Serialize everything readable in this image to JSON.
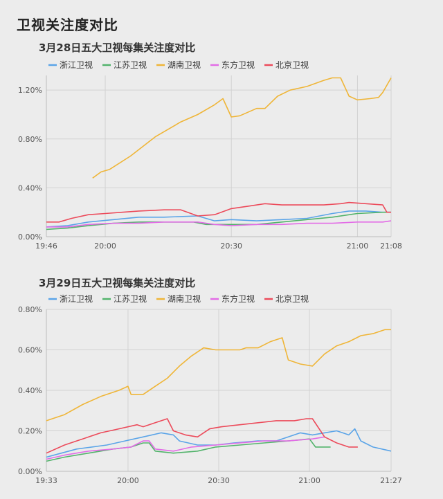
{
  "page": {
    "title": "卫视关注度对比"
  },
  "colors": {
    "浙江卫视": "#5aa4e8",
    "江苏卫视": "#52b36b",
    "湖南卫视": "#efb537",
    "东方卫视": "#e26be6",
    "北京卫视": "#ec4a5a"
  },
  "chart_data": [
    {
      "type": "line",
      "title": "3月28日五大卫视每集关注度对比",
      "legend_position": "top",
      "x_tick_labels": [
        "19:46",
        "20:00",
        "20:30",
        "21:00",
        "21:08"
      ],
      "x_tick_minutes": [
        0,
        14,
        44,
        74,
        82
      ],
      "xlim": [
        0,
        82
      ],
      "ylim": [
        0,
        1.32
      ],
      "y_ticks": [
        0,
        0.4,
        0.8,
        1.2
      ],
      "y_tick_labels": [
        "0.00%",
        "0.40%",
        "0.80%",
        "1.20%"
      ],
      "grid": true,
      "series": [
        {
          "name": "浙江卫视",
          "points": [
            [
              0,
              0.08
            ],
            [
              5,
              0.09
            ],
            [
              10,
              0.12
            ],
            [
              16,
              0.14
            ],
            [
              22,
              0.16
            ],
            [
              28,
              0.16
            ],
            [
              36,
              0.17
            ],
            [
              40,
              0.13
            ],
            [
              44,
              0.14
            ],
            [
              50,
              0.13
            ],
            [
              56,
              0.14
            ],
            [
              62,
              0.15
            ],
            [
              68,
              0.19
            ],
            [
              72,
              0.21
            ],
            [
              76,
              0.21
            ],
            [
              80,
              0.2
            ],
            [
              82,
              0.2
            ]
          ]
        },
        {
          "name": "江苏卫视",
          "points": [
            [
              0,
              0.06
            ],
            [
              5,
              0.07
            ],
            [
              10,
              0.09
            ],
            [
              16,
              0.11
            ],
            [
              22,
              0.12
            ],
            [
              28,
              0.12
            ],
            [
              35,
              0.12
            ],
            [
              38,
              0.1
            ],
            [
              44,
              0.1
            ],
            [
              50,
              0.1
            ],
            [
              56,
              0.12
            ],
            [
              62,
              0.14
            ],
            [
              68,
              0.16
            ],
            [
              74,
              0.19
            ],
            [
              80,
              0.2
            ],
            [
              82,
              0.2
            ]
          ]
        },
        {
          "name": "湖南卫视",
          "points": [
            [
              11,
              0.48
            ],
            [
              13,
              0.53
            ],
            [
              15,
              0.55
            ],
            [
              20,
              0.66
            ],
            [
              26,
              0.82
            ],
            [
              32,
              0.94
            ],
            [
              36,
              1.0
            ],
            [
              40,
              1.08
            ],
            [
              42,
              1.13
            ],
            [
              44,
              0.98
            ],
            [
              46,
              0.99
            ],
            [
              50,
              1.05
            ],
            [
              52,
              1.05
            ],
            [
              55,
              1.15
            ],
            [
              58,
              1.2
            ],
            [
              62,
              1.23
            ],
            [
              66,
              1.28
            ],
            [
              68,
              1.3
            ],
            [
              70,
              1.3
            ],
            [
              72,
              1.15
            ],
            [
              74,
              1.12
            ],
            [
              77,
              1.13
            ],
            [
              79,
              1.14
            ],
            [
              80,
              1.18
            ],
            [
              82,
              1.3
            ]
          ]
        },
        {
          "name": "东方卫视",
          "points": [
            [
              0,
              0.08
            ],
            [
              5,
              0.08
            ],
            [
              10,
              0.1
            ],
            [
              16,
              0.11
            ],
            [
              22,
              0.11
            ],
            [
              28,
              0.12
            ],
            [
              36,
              0.12
            ],
            [
              40,
              0.1
            ],
            [
              44,
              0.09
            ],
            [
              50,
              0.1
            ],
            [
              56,
              0.1
            ],
            [
              62,
              0.11
            ],
            [
              68,
              0.11
            ],
            [
              74,
              0.12
            ],
            [
              80,
              0.12
            ],
            [
              82,
              0.13
            ]
          ]
        },
        {
          "name": "北京卫视",
          "points": [
            [
              0,
              0.12
            ],
            [
              3,
              0.12
            ],
            [
              6,
              0.15
            ],
            [
              10,
              0.18
            ],
            [
              14,
              0.19
            ],
            [
              18,
              0.2
            ],
            [
              22,
              0.21
            ],
            [
              28,
              0.22
            ],
            [
              32,
              0.22
            ],
            [
              36,
              0.17
            ],
            [
              40,
              0.18
            ],
            [
              44,
              0.23
            ],
            [
              48,
              0.25
            ],
            [
              52,
              0.27
            ],
            [
              56,
              0.26
            ],
            [
              62,
              0.26
            ],
            [
              66,
              0.26
            ],
            [
              70,
              0.27
            ],
            [
              72,
              0.28
            ],
            [
              76,
              0.27
            ],
            [
              80,
              0.26
            ],
            [
              81,
              0.2
            ],
            [
              82,
              0.2
            ]
          ]
        }
      ]
    },
    {
      "type": "line",
      "title": "3月29日五大卫视每集关注度对比",
      "legend_position": "top",
      "x_tick_labels": [
        "19:33",
        "20:00",
        "20:30",
        "21:00",
        "21:27"
      ],
      "x_tick_minutes": [
        0,
        27,
        57,
        87,
        114
      ],
      "xlim": [
        0,
        114
      ],
      "ylim": [
        0,
        0.8
      ],
      "y_ticks": [
        0,
        0.2,
        0.4,
        0.6,
        0.8
      ],
      "y_tick_labels": [
        "0.00%",
        "0.20%",
        "0.40%",
        "0.60%",
        "0.80%"
      ],
      "grid": true,
      "series": [
        {
          "name": "浙江卫视",
          "points": [
            [
              0,
              0.07
            ],
            [
              5,
              0.09
            ],
            [
              10,
              0.11
            ],
            [
              20,
              0.13
            ],
            [
              26,
              0.15
            ],
            [
              32,
              0.17
            ],
            [
              38,
              0.19
            ],
            [
              42,
              0.18
            ],
            [
              44,
              0.15
            ],
            [
              50,
              0.13
            ],
            [
              56,
              0.13
            ],
            [
              62,
              0.14
            ],
            [
              70,
              0.15
            ],
            [
              76,
              0.15
            ],
            [
              80,
              0.17
            ],
            [
              84,
              0.19
            ],
            [
              88,
              0.18
            ],
            [
              92,
              0.19
            ],
            [
              96,
              0.2
            ],
            [
              98,
              0.19
            ],
            [
              100,
              0.18
            ],
            [
              102,
              0.21
            ],
            [
              104,
              0.15
            ],
            [
              108,
              0.12
            ],
            [
              114,
              0.1
            ]
          ]
        },
        {
          "name": "江苏卫视",
          "points": [
            [
              0,
              0.05
            ],
            [
              6,
              0.07
            ],
            [
              14,
              0.09
            ],
            [
              22,
              0.11
            ],
            [
              28,
              0.12
            ],
            [
              32,
              0.14
            ],
            [
              34,
              0.14
            ],
            [
              36,
              0.1
            ],
            [
              42,
              0.09
            ],
            [
              50,
              0.1
            ],
            [
              56,
              0.12
            ],
            [
              64,
              0.13
            ],
            [
              72,
              0.14
            ],
            [
              80,
              0.15
            ],
            [
              87,
              0.16
            ],
            [
              89,
              0.12
            ],
            [
              94,
              0.12
            ]
          ]
        },
        {
          "name": "湖南卫视",
          "points": [
            [
              0,
              0.25
            ],
            [
              6,
              0.28
            ],
            [
              12,
              0.33
            ],
            [
              18,
              0.37
            ],
            [
              24,
              0.4
            ],
            [
              27,
              0.42
            ],
            [
              28,
              0.38
            ],
            [
              32,
              0.38
            ],
            [
              36,
              0.42
            ],
            [
              40,
              0.46
            ],
            [
              44,
              0.52
            ],
            [
              48,
              0.57
            ],
            [
              52,
              0.61
            ],
            [
              56,
              0.6
            ],
            [
              60,
              0.6
            ],
            [
              64,
              0.6
            ],
            [
              66,
              0.61
            ],
            [
              70,
              0.61
            ],
            [
              74,
              0.64
            ],
            [
              78,
              0.66
            ],
            [
              80,
              0.55
            ],
            [
              84,
              0.53
            ],
            [
              88,
              0.52
            ],
            [
              92,
              0.58
            ],
            [
              96,
              0.62
            ],
            [
              100,
              0.64
            ],
            [
              104,
              0.67
            ],
            [
              108,
              0.68
            ],
            [
              112,
              0.7
            ],
            [
              114,
              0.7
            ]
          ]
        },
        {
          "name": "东方卫视",
          "points": [
            [
              0,
              0.06
            ],
            [
              6,
              0.08
            ],
            [
              14,
              0.1
            ],
            [
              22,
              0.11
            ],
            [
              28,
              0.12
            ],
            [
              32,
              0.15
            ],
            [
              34,
              0.15
            ],
            [
              36,
              0.11
            ],
            [
              42,
              0.1
            ],
            [
              48,
              0.12
            ],
            [
              56,
              0.13
            ],
            [
              64,
              0.14
            ],
            [
              72,
              0.15
            ],
            [
              80,
              0.15
            ],
            [
              88,
              0.16
            ],
            [
              92,
              0.17
            ]
          ]
        },
        {
          "name": "北京卫视",
          "points": [
            [
              0,
              0.09
            ],
            [
              6,
              0.13
            ],
            [
              12,
              0.16
            ],
            [
              18,
              0.19
            ],
            [
              24,
              0.21
            ],
            [
              30,
              0.23
            ],
            [
              32,
              0.22
            ],
            [
              36,
              0.24
            ],
            [
              40,
              0.26
            ],
            [
              42,
              0.2
            ],
            [
              46,
              0.18
            ],
            [
              50,
              0.17
            ],
            [
              54,
              0.21
            ],
            [
              58,
              0.22
            ],
            [
              64,
              0.23
            ],
            [
              70,
              0.24
            ],
            [
              76,
              0.25
            ],
            [
              82,
              0.25
            ],
            [
              86,
              0.26
            ],
            [
              88,
              0.26
            ],
            [
              92,
              0.17
            ],
            [
              96,
              0.14
            ],
            [
              100,
              0.12
            ],
            [
              103,
              0.12
            ]
          ]
        }
      ]
    }
  ]
}
